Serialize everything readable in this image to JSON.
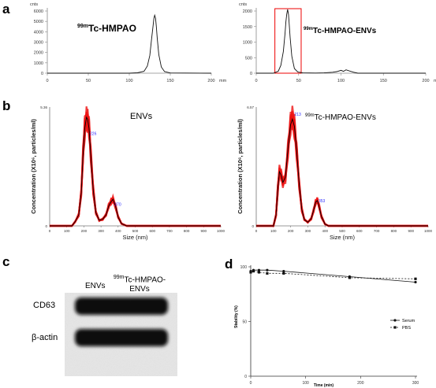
{
  "panels": {
    "a": "a",
    "b": "b",
    "c": "c",
    "d": "d"
  },
  "chart_data": [
    {
      "id": "a1",
      "type": "line",
      "annotation_iso": "99m",
      "annotation_main": "Tc-HMPAO",
      "y_unit": "cnts",
      "x_unit": "mm",
      "xlim": [
        0,
        200
      ],
      "ylim": [
        0,
        6000
      ],
      "xticks": [
        0,
        50,
        100,
        150,
        200
      ],
      "yticks": [
        0,
        1000,
        2000,
        3000,
        4000,
        5000,
        6000
      ],
      "x": [
        0,
        50,
        100,
        110,
        118,
        122,
        125,
        127,
        129,
        130,
        131,
        132,
        133,
        134,
        136,
        139,
        143,
        150,
        200
      ],
      "y": [
        0,
        0,
        0,
        40,
        180,
        700,
        1700,
        3200,
        4600,
        5300,
        5600,
        5300,
        4500,
        3400,
        1800,
        600,
        150,
        20,
        0
      ]
    },
    {
      "id": "a2",
      "type": "line",
      "annotation_iso": "99m",
      "annotation_main": "Tc-HMPAO-ENVs",
      "y_unit": "cnts",
      "x_unit": "mm",
      "xlim": [
        0,
        200
      ],
      "ylim": [
        0,
        2000
      ],
      "xticks": [
        0,
        50,
        100,
        150,
        200
      ],
      "yticks": [
        0,
        500,
        1000,
        1500,
        2000
      ],
      "highlight_range": [
        22,
        53
      ],
      "x": [
        0,
        20,
        26,
        29,
        32,
        34,
        35,
        36,
        37,
        38,
        39,
        40,
        42,
        45,
        49,
        55,
        70,
        80,
        90,
        95,
        100,
        103,
        106,
        110,
        115,
        120,
        200
      ],
      "y": [
        0,
        0,
        60,
        250,
        700,
        1300,
        1650,
        1900,
        2050,
        1900,
        1550,
        1150,
        550,
        150,
        40,
        10,
        5,
        10,
        30,
        50,
        90,
        60,
        110,
        70,
        30,
        0,
        0
      ]
    },
    {
      "id": "b1",
      "type": "line",
      "annotation": "ENVs",
      "ylabel": "Concentration (X10⁶, particles/ml)",
      "xlabel": "Size (nm)",
      "ymax_label": "5.36",
      "xlim": [
        0,
        1000
      ],
      "ylim": [
        0,
        5.36
      ],
      "xticks": [
        0,
        100,
        200,
        300,
        400,
        500,
        600,
        700,
        800,
        900,
        1000
      ],
      "peak_labels": [
        {
          "x": 226,
          "y": 4.1,
          "text": "226"
        },
        {
          "x": 370,
          "y": 0.9,
          "text": "370"
        }
      ],
      "x": [
        0,
        130,
        150,
        170,
        185,
        195,
        205,
        215,
        222,
        230,
        240,
        255,
        270,
        290,
        310,
        330,
        345,
        360,
        370,
        385,
        400,
        420,
        450,
        1000
      ],
      "y": [
        0,
        0,
        0.2,
        0.5,
        1.5,
        3.2,
        4.4,
        4.9,
        4.8,
        4.4,
        3.2,
        1.6,
        0.6,
        0.25,
        0.3,
        0.5,
        0.9,
        1.1,
        1.2,
        0.9,
        0.4,
        0.1,
        0,
        0
      ]
    },
    {
      "id": "b2",
      "type": "line",
      "annotation_iso": "99m",
      "annotation_main": "Tc-HMPAO-ENVs",
      "ylabel": "Concentration (X10⁶, particles/ml)",
      "xlabel": "Size (nm)",
      "ymax_label": "6.57",
      "xlim": [
        0,
        1000
      ],
      "ylim": [
        0,
        6.57
      ],
      "xticks": [
        0,
        100,
        200,
        300,
        400,
        500,
        600,
        700,
        800,
        900,
        1000
      ],
      "peak_labels": [
        {
          "x": 213,
          "y": 6.1,
          "text": "213"
        },
        {
          "x": 353,
          "y": 1.3,
          "text": "353"
        }
      ],
      "x": [
        0,
        100,
        115,
        125,
        135,
        145,
        155,
        170,
        185,
        200,
        210,
        222,
        235,
        250,
        265,
        280,
        300,
        320,
        335,
        345,
        355,
        365,
        380,
        400,
        420,
        1000
      ],
      "y": [
        0,
        0,
        0.6,
        2.0,
        3.0,
        2.8,
        2.4,
        2.7,
        4.3,
        5.6,
        5.9,
        5.5,
        4.2,
        2.3,
        0.9,
        0.35,
        0.2,
        0.4,
        0.9,
        1.3,
        1.4,
        1.1,
        0.5,
        0.1,
        0,
        0
      ]
    },
    {
      "id": "d",
      "type": "line",
      "ylabel": "Stability (%)",
      "xlabel": "Time (min)",
      "xlim": [
        0,
        300
      ],
      "ylim": [
        0,
        100
      ],
      "xticks": [
        0,
        100,
        200,
        300
      ],
      "yticks": [
        0,
        50,
        100
      ],
      "legend_position": "right-middle",
      "series": [
        {
          "name": "Serum",
          "marker": "circle",
          "dash": "solid",
          "x": [
            0,
            5,
            15,
            30,
            60,
            180,
            300
          ],
          "y": [
            96,
            97,
            97,
            97,
            96,
            91,
            86
          ]
        },
        {
          "name": "PBS",
          "marker": "square",
          "dash": "dashed",
          "x": [
            0,
            5,
            15,
            30,
            60,
            180,
            300
          ],
          "y": [
            95,
            96,
            95,
            94,
            94,
            90,
            89
          ]
        }
      ]
    }
  ],
  "blot": {
    "col1": "ENVs",
    "col2_iso": "99m",
    "col2_line1": "Tc-HMPAO-",
    "col2_line2": "ENVs",
    "row1": "CD63",
    "row2": "β-actin"
  }
}
